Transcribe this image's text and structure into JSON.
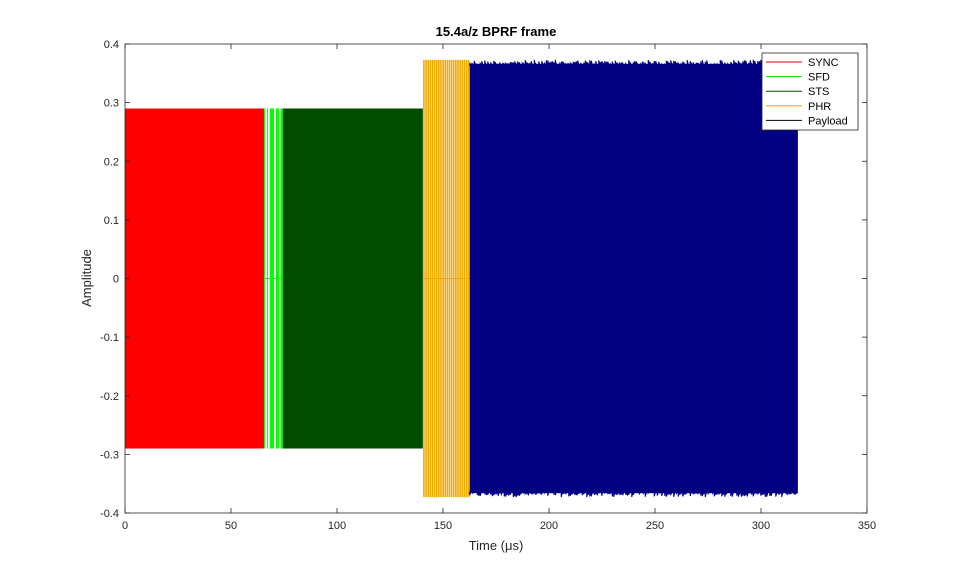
{
  "chart_data": {
    "type": "line",
    "title": "15.4a/z BPRF frame",
    "xlabel": "Time (μs)",
    "ylabel": "Amplitude",
    "xlim": [
      0,
      350
    ],
    "ylim": [
      -0.4,
      0.4
    ],
    "xticks": [
      0,
      50,
      100,
      150,
      200,
      250,
      300,
      350
    ],
    "yticks": [
      -0.4,
      -0.3,
      -0.2,
      -0.1,
      0,
      0.1,
      0.2,
      0.3,
      0.4
    ],
    "xtick_labels": [
      "0",
      "50",
      "100",
      "150",
      "200",
      "250",
      "300",
      "350"
    ],
    "ytick_labels": [
      "-0.4",
      "-0.3",
      "-0.2",
      "-0.1",
      "0",
      "0.1",
      "0.2",
      "0.3",
      "0.4"
    ],
    "grid": false,
    "legend_position": "top-right",
    "series": [
      {
        "name": "SYNC",
        "color": "#ff0000",
        "fill": "#ff0000",
        "x_start": 0,
        "x_end": 65.6,
        "amplitude": [
          -0.29,
          0.29
        ],
        "pulse_pattern": "dense"
      },
      {
        "name": "SFD",
        "color": "#00ff00",
        "fill": "#00ff00",
        "x_start": 65.6,
        "x_end": 74.4,
        "amplitude": [
          -0.29,
          0.29
        ],
        "pulse_pattern": "bursts",
        "bursts": [
          [
            65.6,
            66.0
          ],
          [
            67.0,
            67.4
          ],
          [
            68.3,
            70.3
          ],
          [
            71.2,
            72.6
          ],
          [
            73.3,
            74.4
          ]
        ]
      },
      {
        "name": "STS",
        "color": "#004d00",
        "fill": "#004d00",
        "x_start": 74.4,
        "x_end": 140.5,
        "amplitude": [
          -0.29,
          0.29
        ],
        "pulse_pattern": "dense"
      },
      {
        "name": "PHR",
        "color": "#f2a900",
        "fill": "#f2a900",
        "x_start": 140.5,
        "x_end": 162.6,
        "amplitude": [
          -0.373,
          0.373
        ],
        "pulse_pattern": "sparse",
        "pulse_count": 22
      },
      {
        "name": "Payload",
        "color": "#000080",
        "fill": "#000080",
        "x_start": 162.6,
        "x_end": 317.4,
        "amplitude": [
          -0.373,
          0.373
        ],
        "pulse_pattern": "noisy"
      }
    ],
    "legend_line_colors": {
      "SYNC": "#d40000",
      "SFD": "#00dd00",
      "STS": "#004d00",
      "PHR": "#f2a900",
      "Payload": "#000000"
    }
  }
}
